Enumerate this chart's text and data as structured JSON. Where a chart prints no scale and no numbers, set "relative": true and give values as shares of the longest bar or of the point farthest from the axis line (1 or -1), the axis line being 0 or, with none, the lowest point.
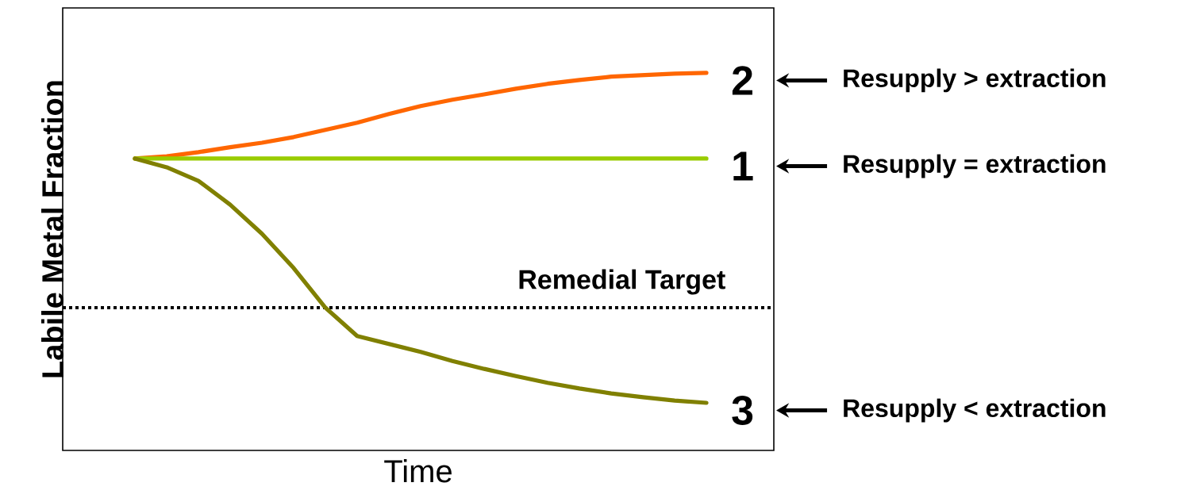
{
  "chart_data": {
    "type": "line",
    "relative": true,
    "xlabel": "Time",
    "ylabel": "Labile Metal Fraction",
    "categories": [
      null,
      null,
      null,
      null,
      null,
      null,
      null,
      null,
      null,
      null,
      null,
      null,
      null,
      null,
      null,
      null,
      null,
      null,
      null
    ],
    "series": [
      {
        "color": "#ff6600",
        "values": [
          0.773,
          0.779,
          0.79,
          0.803,
          0.815,
          0.83,
          0.849,
          0.868,
          0.891,
          0.912,
          0.929,
          0.943,
          0.958,
          0.971,
          0.981,
          0.99,
          0.994,
          0.998,
          1.0
        ]
      },
      {
        "color": "#99cc00",
        "values": [
          0.773,
          0.773,
          0.773,
          0.773,
          0.773,
          0.773,
          0.773,
          0.773,
          0.773,
          0.773,
          0.773,
          0.773,
          0.773,
          0.773,
          0.773,
          0.773,
          0.773,
          0.773,
          0.773
        ]
      },
      {
        "color": "#808000",
        "values": [
          0.773,
          0.75,
          0.714,
          0.651,
          0.574,
          0.483,
          0.378,
          0.303,
          0.282,
          0.261,
          0.237,
          0.216,
          0.197,
          0.179,
          0.164,
          0.151,
          0.141,
          0.132,
          0.126
        ]
      }
    ],
    "ref_lines": [
      {
        "axis": "y",
        "value": 0.378,
        "label": "Remedial Target",
        "color": "#000000",
        "line_style": "dotted"
      }
    ],
    "annotations": [
      "2",
      "Resupply > extraction",
      "1",
      "Resupply = extraction",
      "3",
      "Resupply < extraction"
    ]
  }
}
